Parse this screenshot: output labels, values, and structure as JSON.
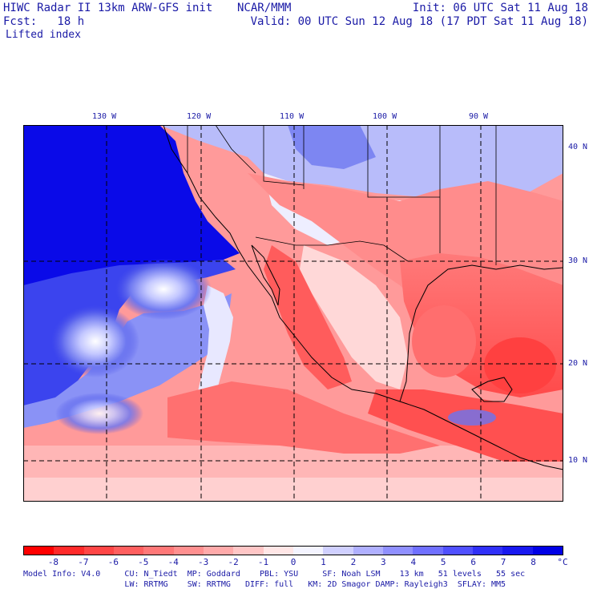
{
  "header": {
    "line1_left": "HIWC Radar II 13km ARW-GFS init",
    "line1_mid": "NCAR/MMM",
    "line1_right": "Init: 06 UTC Sat 11 Aug 18",
    "line2_left": "Fcst:   18 h",
    "line2_right": "Valid: 00 UTC Sun 12 Aug 18 (17 PDT Sat 11 Aug 18)",
    "field": "Lifted index"
  },
  "map": {
    "lon_labels": [
      "130 W",
      "120 W",
      "110 W",
      "100 W",
      "90 W"
    ],
    "lat_labels": [
      "40 N",
      "30 N",
      "20 N",
      "10 N"
    ]
  },
  "colorbar": {
    "ticks": [
      "-8",
      "-7",
      "-6",
      "-5",
      "-4",
      "-3",
      "-2",
      "-1",
      "0",
      "1",
      "2",
      "3",
      "4",
      "5",
      "6",
      "7",
      "8"
    ],
    "unit": "°C",
    "colors": [
      "#ff0000",
      "#ff2a2a",
      "#ff4646",
      "#ff5f5f",
      "#ff7878",
      "#ff9090",
      "#ffaaaa",
      "#ffc6c6",
      "#ffe6e6",
      "#f4f4ff",
      "#d0d0ff",
      "#b0b0ff",
      "#9090ff",
      "#7070ff",
      "#5050ff",
      "#3030f8",
      "#1818f0",
      "#0000e6"
    ]
  },
  "footer": {
    "line1": "Model Info: V4.0     CU: N_Tiedt  MP: Goddard    PBL: YSU     SF: Noah LSM    13 km   51 levels   55 sec",
    "line2": "                     LW: RRTMG    SW: RRTMG   DIFF: full   KM: 2D Smagor DAMP: Rayleigh3  SFLAY: MM5"
  }
}
